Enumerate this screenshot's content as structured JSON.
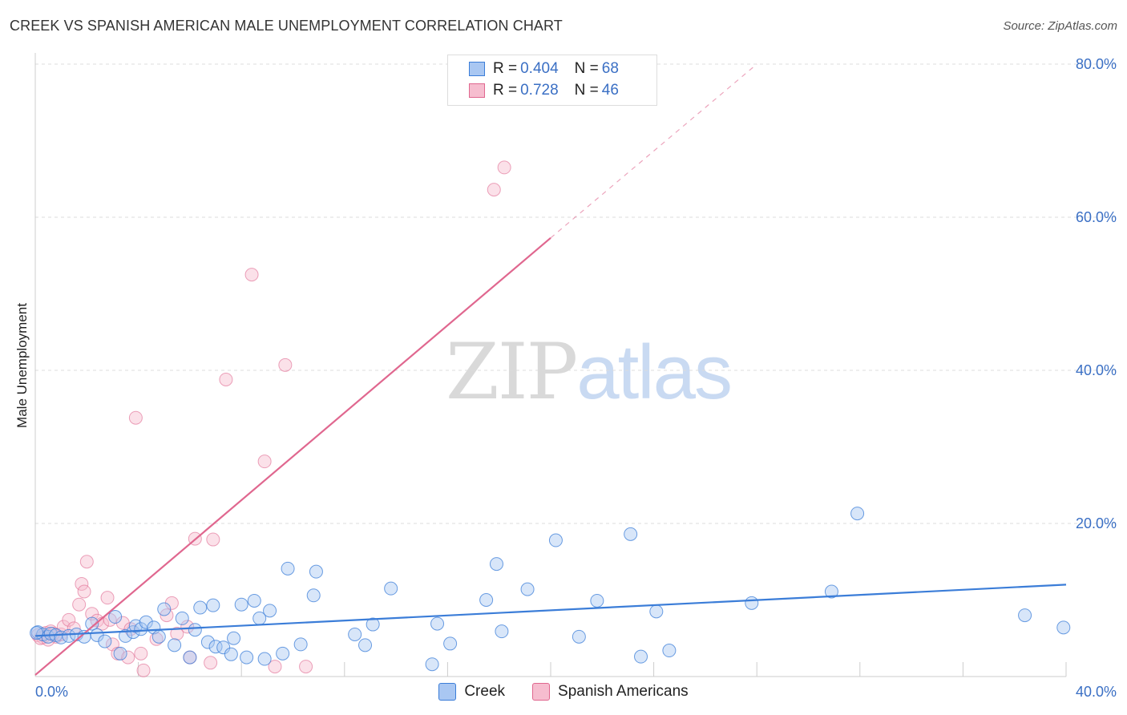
{
  "title": "CREEK VS SPANISH AMERICAN MALE UNEMPLOYMENT CORRELATION CHART",
  "source": "Source: ZipAtlas.com",
  "watermark": {
    "part1": "ZIP",
    "part2": "atlas"
  },
  "legend": {
    "rows": [
      {
        "r_label": "R = ",
        "r_value": "0.404",
        "n_label": "N = ",
        "n_value": "68",
        "color": "#a9c7f2"
      },
      {
        "r_label": "R = ",
        "r_value": "0.728",
        "n_label": "N = ",
        "n_value": "46",
        "color": "#f6bdcf"
      }
    ]
  },
  "bottom_legend": {
    "creek": "Creek",
    "spanish": "Spanish Americans"
  },
  "chart_data": {
    "type": "scatter",
    "title": "CREEK VS SPANISH AMERICAN MALE UNEMPLOYMENT CORRELATION CHART",
    "xlabel": "",
    "ylabel": "Male Unemployment",
    "xlim": [
      0,
      40
    ],
    "ylim": [
      0,
      80
    ],
    "x_tick_labels": [
      "0.0%",
      "40.0%"
    ],
    "y_ticks": [
      20,
      40,
      60,
      80
    ],
    "y_tick_labels": [
      "20.0%",
      "40.0%",
      "60.0%",
      "80.0%"
    ],
    "grid": true,
    "series": [
      {
        "name": "Creek",
        "color": "#3b7dd8",
        "fill": "#a9c7f2",
        "trendline": {
          "x0": 0,
          "y0": 5.3,
          "x1": 40,
          "y1": 12.0
        },
        "points": [
          [
            0.1,
            5.8
          ],
          [
            0.3,
            5.5
          ],
          [
            0.5,
            5.2
          ],
          [
            0.6,
            5.6
          ],
          [
            0.8,
            5.4
          ],
          [
            1.0,
            5.1
          ],
          [
            1.3,
            5.3
          ],
          [
            1.6,
            5.5
          ],
          [
            1.9,
            5.2
          ],
          [
            2.2,
            6.9
          ],
          [
            2.4,
            5.4
          ],
          [
            2.7,
            4.6
          ],
          [
            3.1,
            7.8
          ],
          [
            3.3,
            3.0
          ],
          [
            3.5,
            5.3
          ],
          [
            3.8,
            5.8
          ],
          [
            3.9,
            6.6
          ],
          [
            4.1,
            6.2
          ],
          [
            4.3,
            7.1
          ],
          [
            4.6,
            6.4
          ],
          [
            4.8,
            5.2
          ],
          [
            5.0,
            8.8
          ],
          [
            5.4,
            4.1
          ],
          [
            5.7,
            7.6
          ],
          [
            6.0,
            2.5
          ],
          [
            6.2,
            6.1
          ],
          [
            6.4,
            9.0
          ],
          [
            6.7,
            4.5
          ],
          [
            6.9,
            9.3
          ],
          [
            7.0,
            3.9
          ],
          [
            7.3,
            3.8
          ],
          [
            7.6,
            2.9
          ],
          [
            7.7,
            5.0
          ],
          [
            8.0,
            9.4
          ],
          [
            8.2,
            2.5
          ],
          [
            8.5,
            9.9
          ],
          [
            8.7,
            7.6
          ],
          [
            8.9,
            2.3
          ],
          [
            9.1,
            8.6
          ],
          [
            9.6,
            3.0
          ],
          [
            9.8,
            14.1
          ],
          [
            10.3,
            4.2
          ],
          [
            10.8,
            10.6
          ],
          [
            10.9,
            13.7
          ],
          [
            12.4,
            5.5
          ],
          [
            12.8,
            4.1
          ],
          [
            13.1,
            6.8
          ],
          [
            13.8,
            11.5
          ],
          [
            15.4,
            1.6
          ],
          [
            15.6,
            6.9
          ],
          [
            16.1,
            4.3
          ],
          [
            17.5,
            10.0
          ],
          [
            17.9,
            14.7
          ],
          [
            18.1,
            5.9
          ],
          [
            19.1,
            11.4
          ],
          [
            20.2,
            17.8
          ],
          [
            21.1,
            5.2
          ],
          [
            21.8,
            9.9
          ],
          [
            23.1,
            18.6
          ],
          [
            23.5,
            2.6
          ],
          [
            24.1,
            8.5
          ],
          [
            24.6,
            3.4
          ],
          [
            27.8,
            9.6
          ],
          [
            30.9,
            11.1
          ],
          [
            31.9,
            21.3
          ],
          [
            38.4,
            8.0
          ],
          [
            39.9,
            6.4
          ],
          [
            0.05,
            5.7
          ]
        ]
      },
      {
        "name": "Spanish Americans",
        "color": "#e0678f",
        "fill": "#f6bdcf",
        "trendline": {
          "x0": 0,
          "y0": 0.2,
          "x1": 20,
          "y1": 57.3,
          "dashed_x1": 28,
          "dashed_y1": 80
        },
        "points": [
          [
            0.1,
            5.4
          ],
          [
            0.3,
            5.1
          ],
          [
            0.4,
            5.7
          ],
          [
            0.6,
            5.9
          ],
          [
            0.8,
            5.2
          ],
          [
            1.0,
            5.5
          ],
          [
            1.1,
            6.5
          ],
          [
            1.3,
            7.4
          ],
          [
            1.5,
            6.3
          ],
          [
            1.7,
            9.4
          ],
          [
            1.8,
            12.1
          ],
          [
            1.9,
            11.1
          ],
          [
            2.0,
            15.0
          ],
          [
            2.2,
            8.2
          ],
          [
            2.4,
            7.3
          ],
          [
            2.6,
            6.9
          ],
          [
            2.8,
            10.3
          ],
          [
            2.9,
            7.4
          ],
          [
            3.0,
            4.2
          ],
          [
            3.2,
            3.0
          ],
          [
            3.4,
            7.0
          ],
          [
            3.6,
            2.5
          ],
          [
            3.9,
            33.8
          ],
          [
            4.1,
            3.0
          ],
          [
            4.2,
            0.8
          ],
          [
            4.7,
            4.9
          ],
          [
            5.1,
            8.0
          ],
          [
            5.3,
            9.6
          ],
          [
            5.5,
            5.6
          ],
          [
            5.9,
            6.5
          ],
          [
            6.0,
            2.5
          ],
          [
            6.2,
            18.0
          ],
          [
            6.8,
            1.8
          ],
          [
            6.9,
            17.9
          ],
          [
            7.4,
            38.8
          ],
          [
            8.4,
            52.5
          ],
          [
            8.9,
            28.1
          ],
          [
            9.3,
            1.3
          ],
          [
            9.7,
            40.7
          ],
          [
            10.5,
            1.3
          ],
          [
            17.8,
            63.6
          ],
          [
            18.2,
            66.5
          ],
          [
            0.2,
            5.0
          ],
          [
            0.5,
            4.8
          ],
          [
            0.7,
            5.6
          ],
          [
            3.7,
            6.2
          ]
        ]
      }
    ]
  }
}
